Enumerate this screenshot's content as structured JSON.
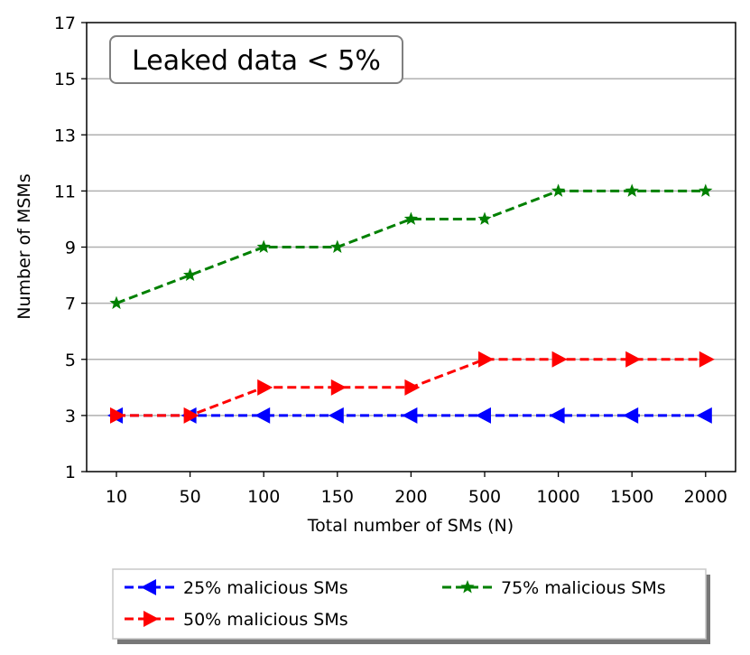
{
  "chart_data": {
    "type": "line",
    "categories": [
      "10",
      "50",
      "100",
      "150",
      "200",
      "500",
      "1000",
      "1500",
      "2000"
    ],
    "xlabel": "Total number of SMs (N)",
    "ylabel": "Number of MSMs",
    "ylim": [
      1,
      17
    ],
    "yticks": [
      "1",
      "3",
      "5",
      "7",
      "9",
      "11",
      "13",
      "15",
      "17"
    ],
    "grid": "horizontal",
    "annotation": "Leaked data < 5%",
    "legend_position": "bottom-center",
    "series": [
      {
        "name": "25% malicious SMs",
        "values": [
          3,
          3,
          3,
          3,
          3,
          3,
          3,
          3,
          3
        ],
        "color": "#0000ff",
        "marker": "triangle-left"
      },
      {
        "name": "50% malicious SMs",
        "values": [
          3,
          3,
          4,
          4,
          4,
          5,
          5,
          5,
          5
        ],
        "color": "#ff0000",
        "marker": "triangle-right"
      },
      {
        "name": "75% malicious SMs",
        "values": [
          7,
          8,
          9,
          9,
          10,
          10,
          11,
          11,
          11
        ],
        "color": "#008000",
        "marker": "star"
      }
    ]
  }
}
